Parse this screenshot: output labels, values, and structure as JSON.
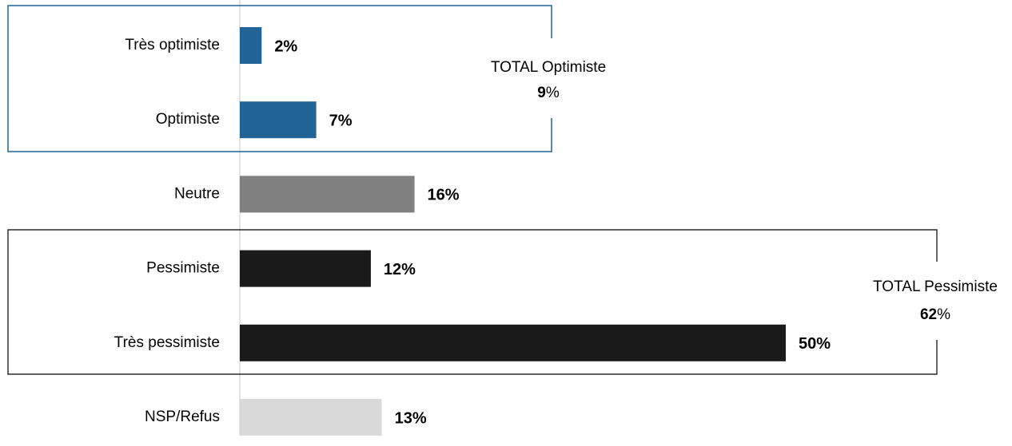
{
  "chart_data": {
    "type": "bar",
    "orientation": "horizontal",
    "categories": [
      "Très optimiste",
      "Optimiste",
      "Neutre",
      "Pessimiste",
      "Très pessimiste",
      "NSP/Refus"
    ],
    "values": [
      2,
      7,
      16,
      12,
      50,
      13
    ],
    "value_labels": [
      "2%",
      "7%",
      "16%",
      "12%",
      "50%",
      "13%"
    ],
    "colors": [
      "#236496",
      "#236496",
      "#808080",
      "#1a1a1a",
      "#1a1a1a",
      "#d9d9d9"
    ],
    "xlim": [
      0,
      50
    ],
    "groups": [
      {
        "label": "TOTAL Optimiste",
        "value": 9,
        "unit": "%"
      },
      {
        "label": "TOTAL Pessimiste",
        "value": 62,
        "unit": "%"
      }
    ]
  }
}
